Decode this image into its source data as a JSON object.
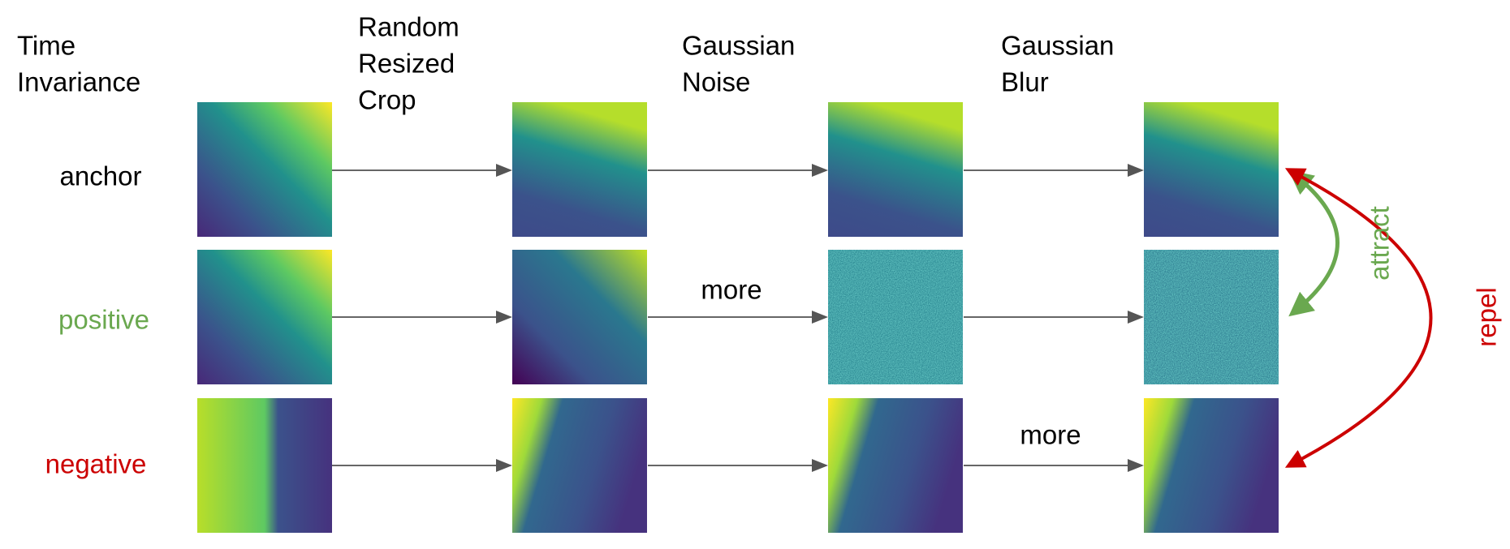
{
  "title": [
    "Time",
    "Invariance"
  ],
  "columns": [
    [
      "Random",
      "Resized",
      "Crop"
    ],
    [
      "Gaussian",
      "Noise"
    ],
    [
      "Gaussian",
      "Blur"
    ]
  ],
  "rows": [
    "anchor",
    "positive",
    "negative"
  ],
  "edge_labels": [
    "more",
    "more"
  ],
  "relations": [
    "attract",
    "repel"
  ]
}
